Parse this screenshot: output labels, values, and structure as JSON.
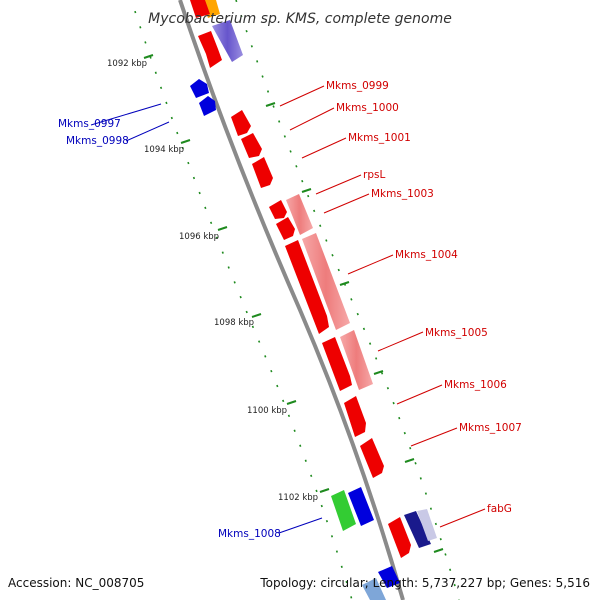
{
  "title": "Mycobacterium sp. KMS, complete genome",
  "footer": {
    "accession": "Accession: NC_008705",
    "summary": "Topology: circular; Length: 5,737,227 bp; Genes: 5,516"
  },
  "kbp_labels": [
    "1092 kbp",
    "1094 kbp",
    "1096 kbp",
    "1098 kbp",
    "1100 kbp",
    "1102 kbp"
  ],
  "gene_labels": {
    "mkms_0997": "Mkms_0997",
    "mkms_0998": "Mkms_0998",
    "mkms_0999": "Mkms_0999",
    "mkms_1000": "Mkms_1000",
    "mkms_1001": "Mkms_1001",
    "rpsl": "rpsL",
    "mkms_1003": "Mkms_1003",
    "mkms_1004": "Mkms_1004",
    "mkms_1005": "Mkms_1005",
    "mkms_1006": "Mkms_1006",
    "mkms_1007": "Mkms_1007",
    "mkms_1008": "Mkms_1008",
    "fabg": "fabG"
  },
  "colors": {
    "backbone": "#8a8a8a",
    "ticks": "#1e8a1e",
    "forward_cds": "#ee0000",
    "forward_label": "#d10000",
    "reverse_cds": "#0000dd",
    "reverse_label": "#0000bb",
    "rna_feature": "#f08080",
    "green_cds": "#33cc33",
    "purple_cds": "#7766cc",
    "orange_cds": "#ffa500"
  }
}
